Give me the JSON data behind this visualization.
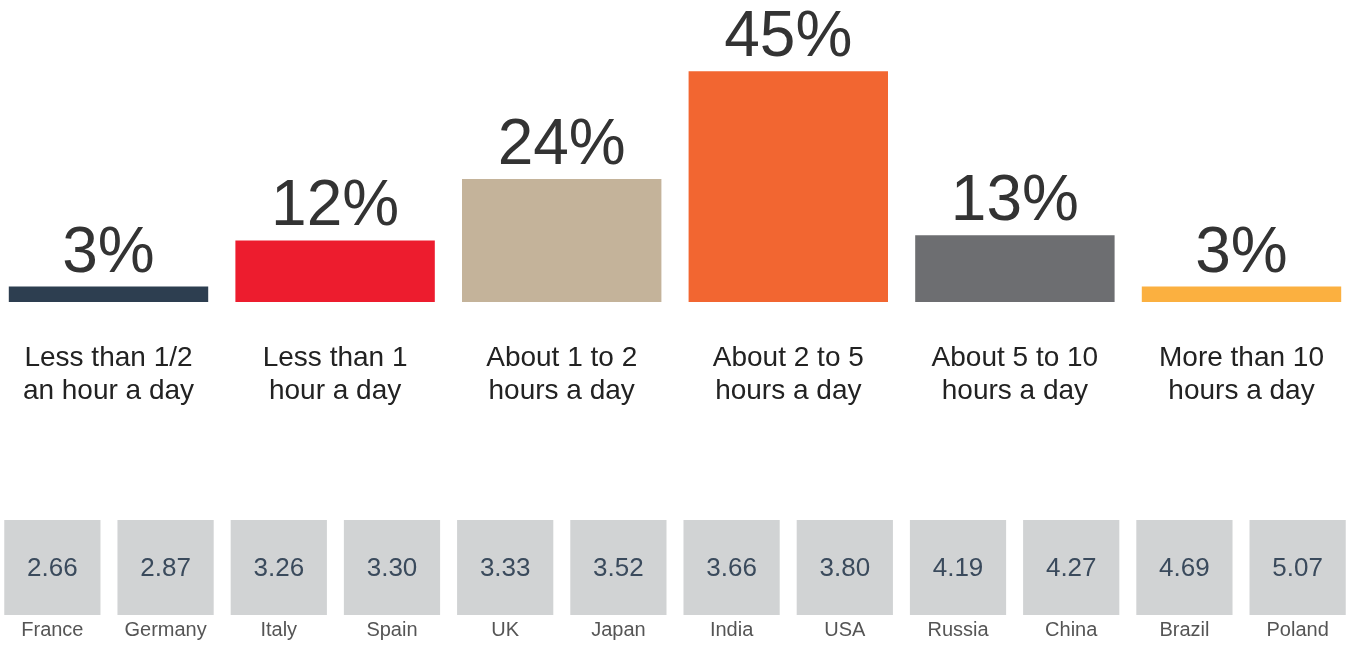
{
  "chart_data": [
    {
      "type": "bar",
      "categories": [
        "Less than 1/2 an hour a day",
        "Less than 1 hour a day",
        "About 1 to 2 hours a day",
        "About 2 to 5 hours a day",
        "About 5 to 10 hours a day",
        "More than 10 hours a day"
      ],
      "values": [
        3,
        12,
        24,
        45,
        13,
        3
      ],
      "colors": [
        "#2d3e50",
        "#ed1c2e",
        "#c4b39a",
        "#f26631",
        "#6d6e71",
        "#fbb040"
      ],
      "value_labels": [
        "3%",
        "12%",
        "24%",
        "45%",
        "13%",
        "3%"
      ]
    },
    {
      "type": "other",
      "categories": [
        "France",
        "Germany",
        "Italy",
        "Spain",
        "UK",
        "Japan",
        "India",
        "USA",
        "Russia",
        "China",
        "Brazil",
        "Poland"
      ],
      "values": [
        2.66,
        2.87,
        3.26,
        3.3,
        3.33,
        3.52,
        3.66,
        3.8,
        4.19,
        4.27,
        4.69,
        5.07
      ],
      "color": "#d1d3d4",
      "value_labels": [
        "2.66",
        "2.87",
        "3.26",
        "3.30",
        "3.33",
        "3.52",
        "3.66",
        "3.80",
        "4.19",
        "4.27",
        "4.69",
        "5.07"
      ]
    }
  ]
}
